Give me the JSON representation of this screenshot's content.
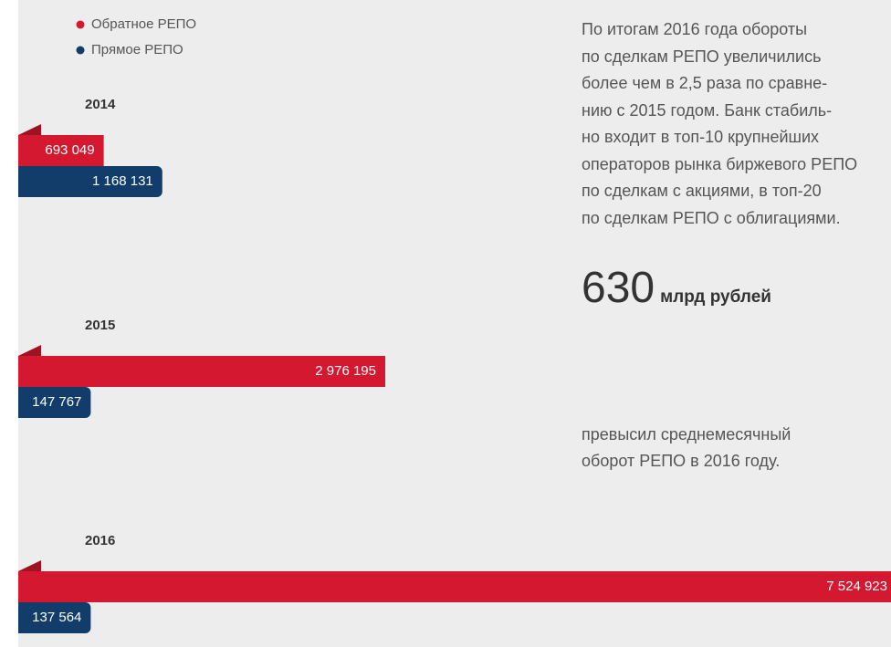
{
  "chart_data": {
    "type": "bar",
    "categories": [
      "2014",
      "2015",
      "2016"
    ],
    "series": [
      {
        "name": "Обратное РЕПО",
        "color": "#d3182f",
        "values": [
          693049,
          2976195,
          7524923
        ],
        "value_labels": [
          "693 049",
          "2 976 195",
          "7 524 923"
        ]
      },
      {
        "name": "Прямое РЕПО",
        "color": "#123d6b",
        "values": [
          1168131,
          147767,
          137564
        ],
        "value_labels": [
          "1 168 131",
          "147 767",
          "137 564"
        ]
      }
    ]
  },
  "text": {
    "paragraph": [
      "По итогам 2016 года обороты",
      "по сделкам РЕПО увеличились",
      "более чем в 2,5 раза по сравне-",
      "нию с 2015 годом. Банк стабиль-",
      "но входит в топ-10 крупнейших",
      "операторов рынка биржевого РЕПО",
      "по сделкам с акциями, в топ-20",
      "по сделкам РЕПО с облигациями."
    ],
    "figure": "630",
    "figure_unit": "млрд рублей",
    "caption": [
      "превысил среднемесячный",
      "оборот РЕПО в 2016 году."
    ]
  }
}
